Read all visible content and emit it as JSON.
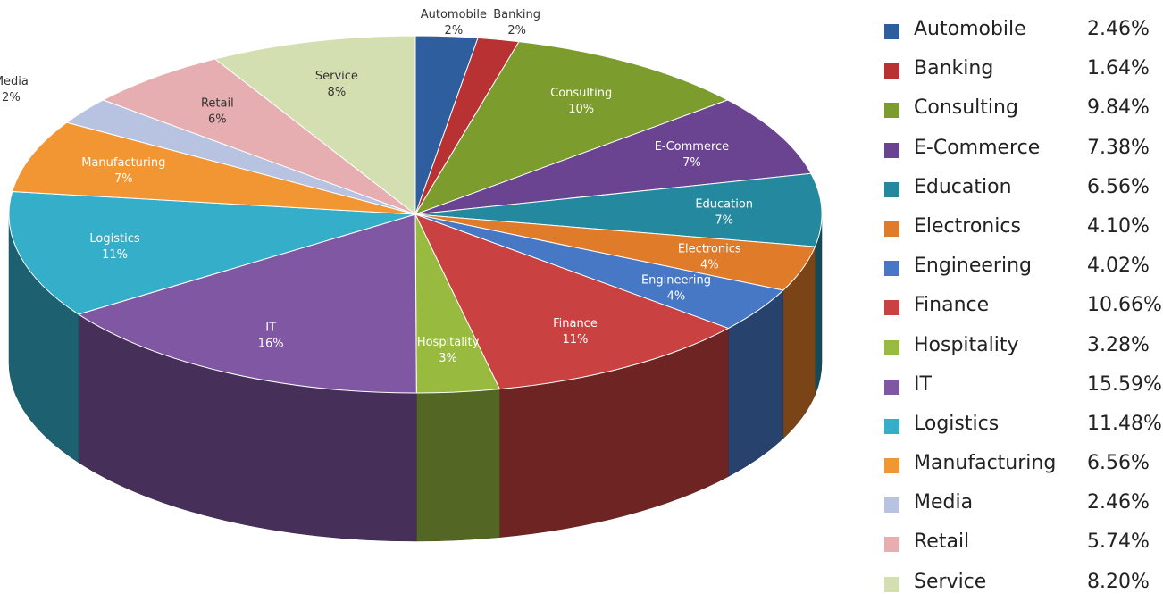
{
  "chart_data": {
    "type": "pie",
    "subtype": "3d-exploded-none",
    "start_angle_deg": 0,
    "direction": "clockwise",
    "title": "",
    "legend_position": "right",
    "slices": [
      {
        "name": "Automobile",
        "pct_label": "2%",
        "value": 2.46,
        "legend_value": "2.46%",
        "color": "#2e5e9e"
      },
      {
        "name": "Banking",
        "pct_label": "2%",
        "value": 1.64,
        "legend_value": "1.64%",
        "color": "#b83233"
      },
      {
        "name": "Consulting",
        "pct_label": "10%",
        "value": 9.84,
        "legend_value": "9.84%",
        "color": "#7c9c2e"
      },
      {
        "name": "E-Commerce",
        "pct_label": "7%",
        "value": 7.38,
        "legend_value": "7.38%",
        "color": "#6a4491"
      },
      {
        "name": "Education",
        "pct_label": "7%",
        "value": 6.56,
        "legend_value": "6.56%",
        "color": "#24899f"
      },
      {
        "name": "Electronics",
        "pct_label": "4%",
        "value": 4.1,
        "legend_value": "4.10%",
        "color": "#e07b2a"
      },
      {
        "name": "Engineering",
        "pct_label": "4%",
        "value": 4.02,
        "legend_value": "4.02%",
        "color": "#4678c6"
      },
      {
        "name": "Finance",
        "pct_label": "11%",
        "value": 10.66,
        "legend_value": "10.66%",
        "color": "#c94141"
      },
      {
        "name": "Hospitality",
        "pct_label": "3%",
        "value": 3.28,
        "legend_value": "3.28%",
        "color": "#97ba3f"
      },
      {
        "name": "IT",
        "pct_label": "16%",
        "value": 15.59,
        "legend_value": "15.59%",
        "color": "#7f57a2"
      },
      {
        "name": "Logistics",
        "pct_label": "11%",
        "value": 11.48,
        "legend_value": "11.48%",
        "color": "#35aec9"
      },
      {
        "name": "Manufacturing",
        "pct_label": "7%",
        "value": 6.56,
        "legend_value": "6.56%",
        "color": "#f29533"
      },
      {
        "name": "Media",
        "pct_label": "2%",
        "value": 2.46,
        "legend_value": "2.46%",
        "color": "#b7c3e0"
      },
      {
        "name": "Retail",
        "pct_label": "6%",
        "value": 5.74,
        "legend_value": "5.74%",
        "color": "#e6aeb0"
      },
      {
        "name": "Service",
        "pct_label": "8%",
        "value": 8.2,
        "legend_value": "8.20%",
        "color": "#d4dfb1"
      }
    ]
  }
}
